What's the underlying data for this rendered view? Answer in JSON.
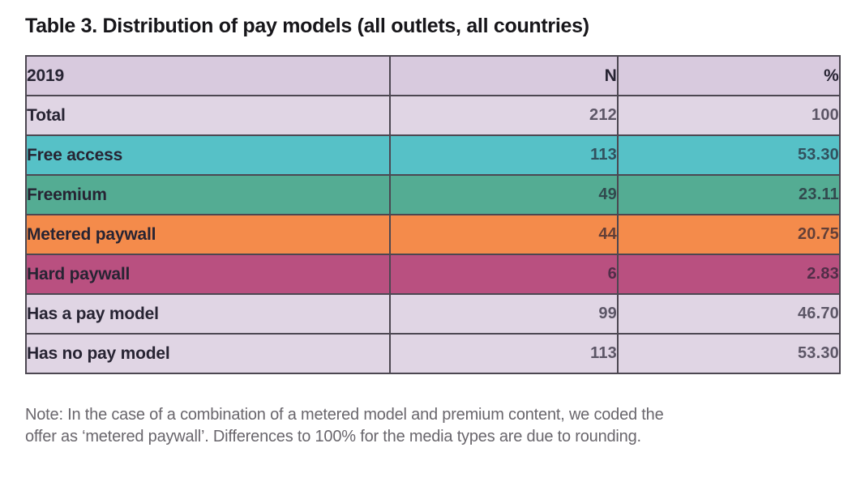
{
  "title": "Table 3. Distribution of pay models (all outlets, all countries)",
  "table": {
    "header": {
      "year": "2019",
      "n": "N",
      "pct": "%"
    },
    "rows": [
      {
        "label": "Total",
        "n": "212",
        "pct": "100",
        "color": "lavender"
      },
      {
        "label": "Free access",
        "n": "113",
        "pct": "53.30",
        "color": "teal"
      },
      {
        "label": "Freemium",
        "n": "49",
        "pct": "23.11",
        "color": "green"
      },
      {
        "label": "Metered paywall",
        "n": "44",
        "pct": "20.75",
        "color": "orange"
      },
      {
        "label": "Hard paywall",
        "n": "6",
        "pct": "2.83",
        "color": "magenta"
      },
      {
        "label": "Has a pay model",
        "n": "99",
        "pct": "46.70",
        "color": "lavender"
      },
      {
        "label": "Has no pay model",
        "n": "113",
        "pct": "53.30",
        "color": "lavender"
      }
    ]
  },
  "note": {
    "line1": "Note: In the case of a combination of a metered model and premium content, we coded the",
    "line2": "offer as ‘metered paywall’. Differences to 100% for the media types are due to rounding."
  },
  "colors": {
    "header_lavender": "#d8cade",
    "lavender": "#e0d5e4",
    "teal": "#56c1c7",
    "green": "#54ac93",
    "orange": "#f48b4b",
    "magenta": "#b95080",
    "border": "#4c4751",
    "title_text": "#17161a",
    "label_text": "#272433",
    "note_text": "#69666c"
  }
}
